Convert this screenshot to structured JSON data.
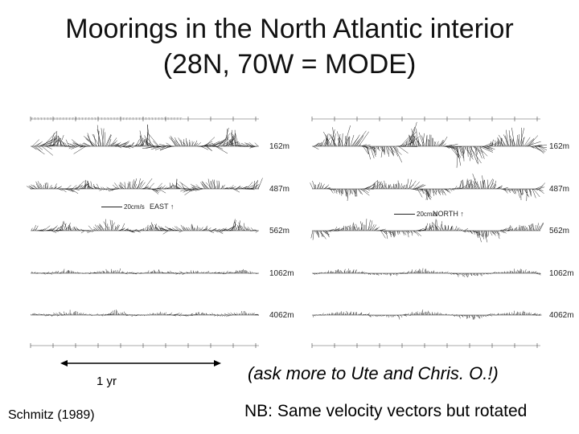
{
  "title": {
    "line1": "Moorings in the North Atlantic interior",
    "line2": "(28N, 70W = MODE)"
  },
  "panels": [
    {
      "component_label": "EAST",
      "scale_label": "20cm/s",
      "depths": [
        "162m",
        "487m",
        "562m",
        "1062m",
        "4062m"
      ]
    },
    {
      "component_label": "NORTH",
      "scale_label": "20cm/s",
      "depths": [
        "162m",
        "487m",
        "562m",
        "1062m",
        "4062m"
      ]
    }
  ],
  "year_label": "1 yr",
  "note_ask": "(ask more to Ute and Chris. O.!)",
  "credit": "Schmitz (1989)",
  "note_nb": "NB: Same velocity vectors but rotated"
}
